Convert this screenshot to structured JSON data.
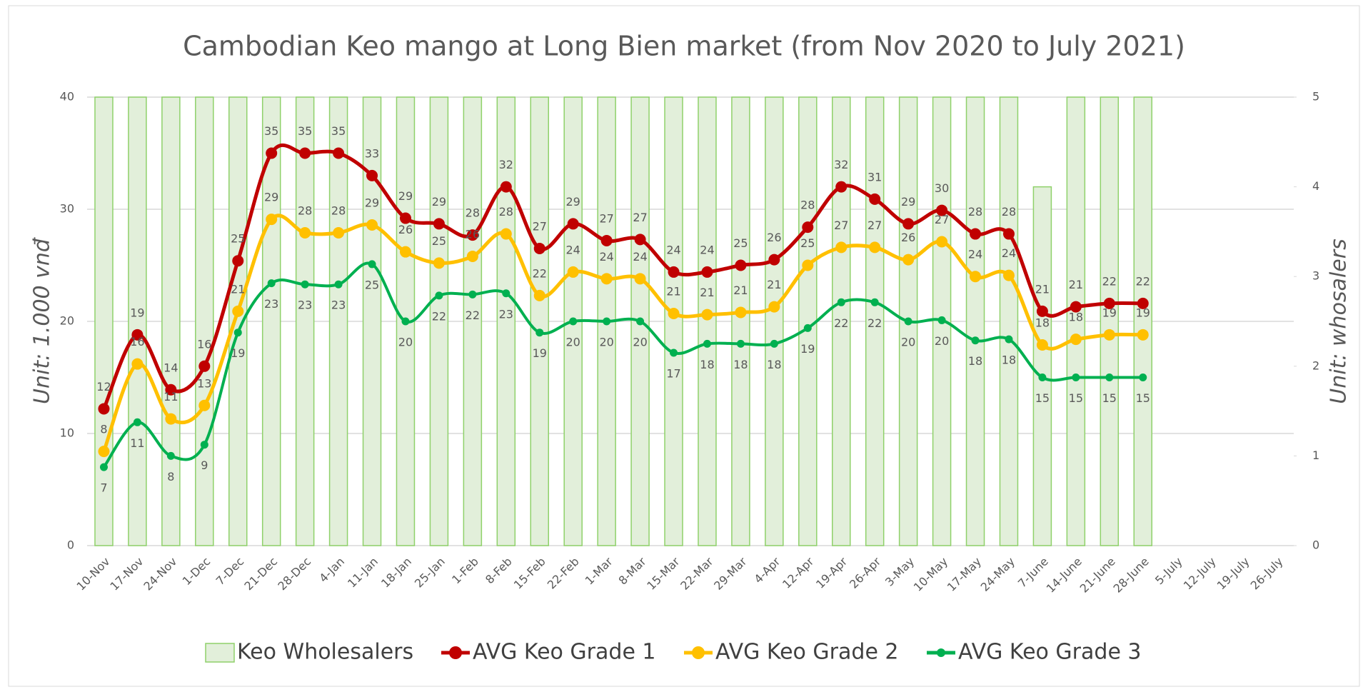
{
  "chart_data": {
    "type": "bar_line",
    "title": "Cambodian Keo mango at Long Bien market (from Nov 2020 to July 2021)",
    "y_label": "Unit: 1.000 vnđ",
    "y2_label": "Unit: whosalers",
    "categories": [
      "10-Nov",
      "17-Nov",
      "24-Nov",
      "1-Dec",
      "7-Dec",
      "21-Dec",
      "28-Dec",
      "4-Jan",
      "11-Jan",
      "18-Jan",
      "25-Jan",
      "1-Feb",
      "8-Feb",
      "15-Feb",
      "22-Feb",
      "1-Mar",
      "8-Mar",
      "15-Mar",
      "22-Mar",
      "29-Mar",
      "4-Apr",
      "12-Apr",
      "19-Apr",
      "26-Apr",
      "3-May",
      "10-May",
      "17-May",
      "24-May",
      "7-June",
      "14-June",
      "21-June",
      "28-June",
      "5-July",
      "12-July",
      "19-July",
      "26-July"
    ],
    "ylim": [
      0,
      40
    ],
    "yticks": [
      0,
      10,
      20,
      30,
      40
    ],
    "y2lim": [
      0,
      5
    ],
    "y2ticks": [
      0,
      1,
      2,
      3,
      4,
      5
    ],
    "grid": true,
    "legend": "bottom",
    "series": [
      {
        "name": "Keo Wholesalers",
        "type": "bar",
        "axis": "y2",
        "color": "#e2efda",
        "edge": "#8fd16a",
        "values": [
          5,
          5,
          5,
          5,
          5,
          5,
          5,
          5,
          5,
          5,
          5,
          5,
          5,
          5,
          5,
          5,
          5,
          5,
          5,
          5,
          5,
          5,
          5,
          5,
          5,
          5,
          5,
          5,
          4,
          5,
          5,
          5,
          null,
          null,
          null,
          null
        ]
      },
      {
        "name": "AVG Keo Grade 1",
        "type": "line",
        "color": "#c00000",
        "values": [
          12.2,
          18.8,
          13.9,
          16,
          25.4,
          35,
          35,
          35,
          33,
          29.2,
          28.7,
          27.7,
          32,
          26.5,
          28.7,
          27.2,
          27.3,
          24.4,
          24.4,
          25,
          25.5,
          28.4,
          32,
          30.9,
          28.7,
          29.9,
          27.8,
          27.8,
          20.9,
          21.3,
          21.6,
          21.6,
          null,
          null,
          null,
          null
        ],
        "value_labels": [
          "12",
          "19",
          "14",
          "16",
          "25",
          "35",
          "35",
          "35",
          "33",
          "29",
          "29",
          "28",
          "32",
          "27",
          "29",
          "27",
          "27",
          "24",
          "24",
          "25",
          "26",
          "28",
          "32",
          "31",
          "29",
          "30",
          "28",
          "28",
          "21",
          "21",
          "22",
          "22",
          null,
          null,
          null,
          null
        ]
      },
      {
        "name": "AVG Keo Grade 2",
        "type": "line",
        "color": "#ffc000",
        "values": [
          8.4,
          16.2,
          11.3,
          12.5,
          20.9,
          29.1,
          27.9,
          27.9,
          28.6,
          26.2,
          25.2,
          25.8,
          27.8,
          22.3,
          24.4,
          23.8,
          23.8,
          20.7,
          20.6,
          20.8,
          21.3,
          25,
          26.6,
          26.6,
          25.5,
          27.1,
          24,
          24.1,
          17.9,
          18.4,
          18.8,
          18.8,
          null,
          null,
          null,
          null
        ],
        "value_labels": [
          "8",
          "16",
          "11",
          "13",
          "21",
          "29",
          "28",
          "28",
          "29",
          "26",
          "25",
          "26",
          "28",
          "22",
          "24",
          "24",
          "24",
          "21",
          "21",
          "21",
          "21",
          "25",
          "27",
          "27",
          "26",
          "27",
          "24",
          "24",
          "18",
          "18",
          "19",
          "19",
          null,
          null,
          null,
          null
        ]
      },
      {
        "name": "AVG Keo Grade 3",
        "type": "line",
        "color": "#00b050",
        "values": [
          7,
          11,
          8,
          9,
          19,
          23.4,
          23.3,
          23.3,
          25.1,
          20,
          22.3,
          22.4,
          22.5,
          19,
          20,
          20,
          20,
          17.2,
          18,
          18,
          18,
          19.4,
          21.7,
          21.7,
          20,
          20.1,
          18.3,
          18.4,
          15,
          15,
          15,
          15,
          null,
          null,
          null,
          null
        ],
        "value_labels": [
          "7",
          "11",
          "8",
          "9",
          "19",
          "23",
          "23",
          "23",
          "25",
          "20",
          "22",
          "22",
          "23",
          "19",
          "20",
          "20",
          "20",
          "17",
          "18",
          "18",
          "18",
          "19",
          "22",
          "22",
          "20",
          "20",
          "18",
          "18",
          "15",
          "15",
          "15",
          "15",
          null,
          null,
          null,
          null
        ]
      }
    ]
  }
}
